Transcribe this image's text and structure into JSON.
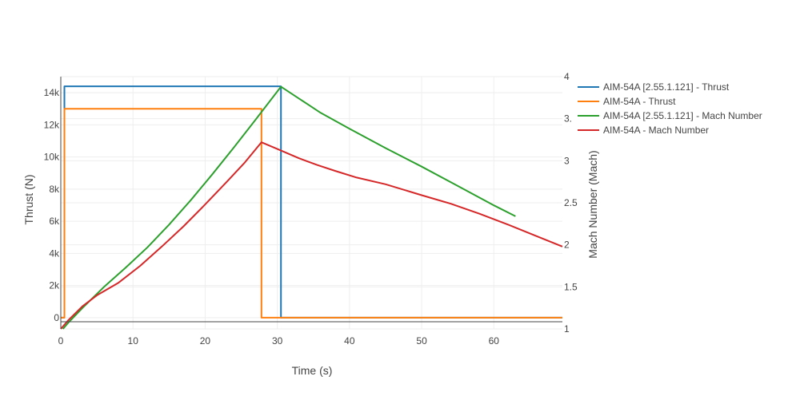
{
  "chart_data": {
    "type": "line",
    "xlabel": "Time (s)",
    "ylabel": "Thrust (N)",
    "y2label": "Mach Number (Mach)",
    "xlim": [
      0,
      69.5
    ],
    "ylim": [
      -700,
      15000
    ],
    "y2lim": [
      1,
      4
    ],
    "x_ticks": [
      0,
      10,
      20,
      30,
      40,
      50,
      60
    ],
    "y_ticks": [
      {
        "value": 0,
        "label": "0"
      },
      {
        "value": 2000,
        "label": "2k"
      },
      {
        "value": 4000,
        "label": "4k"
      },
      {
        "value": 6000,
        "label": "6k"
      },
      {
        "value": 8000,
        "label": "8k"
      },
      {
        "value": 10000,
        "label": "10k"
      },
      {
        "value": 12000,
        "label": "12k"
      },
      {
        "value": 14000,
        "label": "14k"
      }
    ],
    "y2_ticks": [
      {
        "value": 1,
        "label": "1"
      },
      {
        "value": 1.5,
        "label": "1.5"
      },
      {
        "value": 2,
        "label": "2"
      },
      {
        "value": 2.5,
        "label": "2.5"
      },
      {
        "value": 3,
        "label": "3"
      },
      {
        "value": 3.5,
        "label": "3."
      },
      {
        "value": 4,
        "label": "4"
      }
    ],
    "grid": true,
    "legend_position": "right",
    "series": [
      {
        "name": "AIM-54A [2.55.1.121] - Thrust",
        "axis": "y",
        "color": "#1f77b4",
        "x": [
          0,
          0.5,
          0.5,
          30.5,
          30.5,
          69.5
        ],
        "y": [
          0,
          0,
          14400,
          14400,
          0,
          0
        ]
      },
      {
        "name": "AIM-54A - Thrust",
        "axis": "y",
        "color": "#ff7f0e",
        "x": [
          0,
          0.5,
          0.5,
          27.8,
          27.8,
          69.5
        ],
        "y": [
          0,
          0,
          13000,
          13000,
          0,
          0
        ]
      },
      {
        "name": "AIM-54A [2.55.1.121] - Mach Number",
        "axis": "y2",
        "color": "#2ca02c",
        "x": [
          0.3,
          1,
          3,
          6,
          9,
          12,
          15,
          18,
          21,
          24,
          27,
          30.5,
          33,
          36,
          40,
          45,
          50,
          55,
          60,
          63
        ],
        "y": [
          1.0,
          1.07,
          1.25,
          1.5,
          1.73,
          1.97,
          2.24,
          2.53,
          2.84,
          3.16,
          3.49,
          3.88,
          3.74,
          3.57,
          3.38,
          3.15,
          2.93,
          2.7,
          2.47,
          2.34
        ]
      },
      {
        "name": "AIM-54A - Mach Number",
        "axis": "y2",
        "color": "#d62728",
        "x": [
          0,
          1,
          3,
          5,
          8,
          11,
          14,
          17,
          20,
          23,
          25.5,
          27.8,
          30,
          33,
          35.5,
          38,
          41,
          45,
          50,
          54,
          58,
          62,
          66,
          69.5
        ],
        "y": [
          1.0,
          1.1,
          1.27,
          1.4,
          1.55,
          1.75,
          1.98,
          2.22,
          2.48,
          2.75,
          2.98,
          3.22,
          3.14,
          3.03,
          2.95,
          2.88,
          2.8,
          2.72,
          2.59,
          2.49,
          2.37,
          2.24,
          2.1,
          1.98
        ]
      }
    ]
  }
}
